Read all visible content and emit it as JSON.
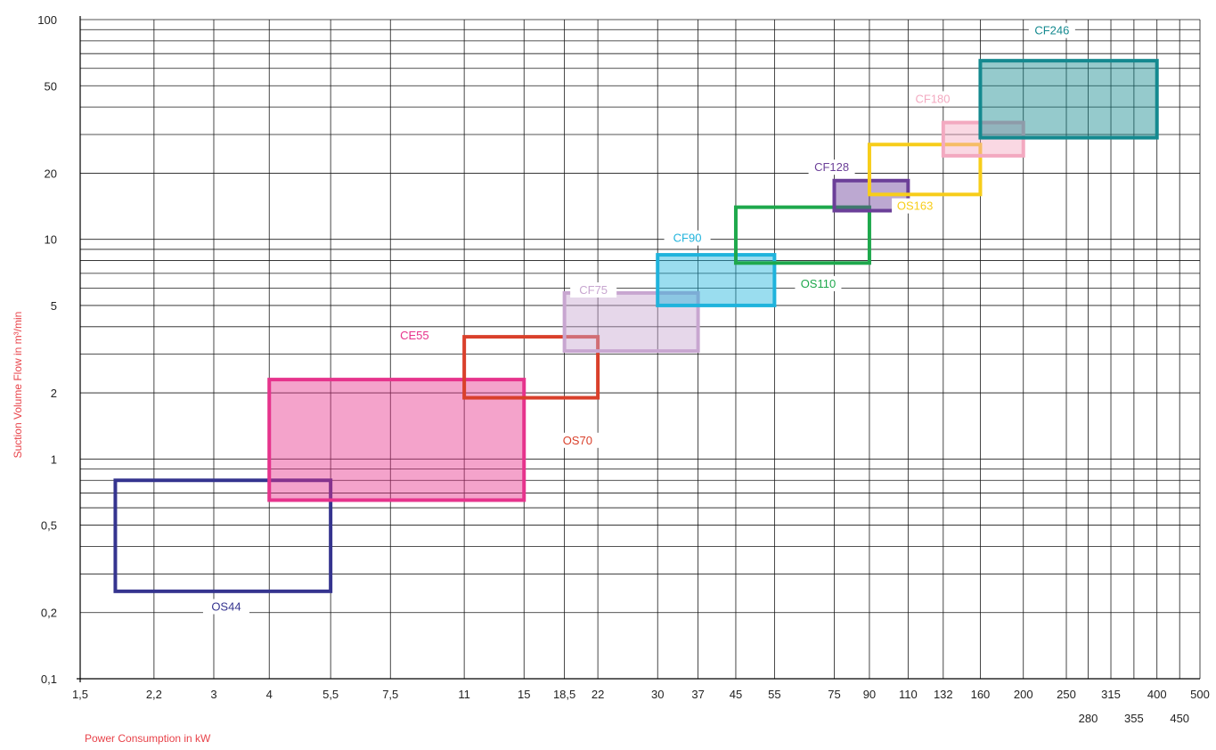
{
  "chart_data": {
    "type": "range-box",
    "xlabel": "Power Consumption in kW",
    "ylabel": "Suction Volume Flow in m³/min",
    "x_scale": "log",
    "y_scale": "log",
    "xlim": [
      1.5,
      500
    ],
    "ylim": [
      0.1,
      100
    ],
    "grid": true,
    "x_ticks_row1": [
      {
        "value": 1.5,
        "label": "1,5"
      },
      {
        "value": 2.2,
        "label": "2,2"
      },
      {
        "value": 3,
        "label": "3"
      },
      {
        "value": 4,
        "label": "4"
      },
      {
        "value": 5.5,
        "label": "5,5"
      },
      {
        "value": 7.5,
        "label": "7,5"
      },
      {
        "value": 11,
        "label": "11"
      },
      {
        "value": 15,
        "label": "15"
      },
      {
        "value": 18.5,
        "label": "18,5"
      },
      {
        "value": 22,
        "label": "22"
      },
      {
        "value": 30,
        "label": "30"
      },
      {
        "value": 37,
        "label": "37"
      },
      {
        "value": 45,
        "label": "45"
      },
      {
        "value": 55,
        "label": "55"
      },
      {
        "value": 75,
        "label": "75"
      },
      {
        "value": 90,
        "label": "90"
      },
      {
        "value": 110,
        "label": "110"
      },
      {
        "value": 132,
        "label": "132"
      },
      {
        "value": 160,
        "label": "160"
      },
      {
        "value": 200,
        "label": "200"
      },
      {
        "value": 250,
        "label": "250"
      },
      {
        "value": 315,
        "label": "315"
      },
      {
        "value": 400,
        "label": "400"
      },
      {
        "value": 500,
        "label": "500"
      }
    ],
    "x_ticks_row2": [
      {
        "value": 280,
        "label": "280"
      },
      {
        "value": 355,
        "label": "355"
      },
      {
        "value": 450,
        "label": "450"
      }
    ],
    "y_ticks": [
      {
        "value": 0.1,
        "label": "0,1"
      },
      {
        "value": 0.2,
        "label": "0,2"
      },
      {
        "value": 0.5,
        "label": "0,5"
      },
      {
        "value": 1,
        "label": "1"
      },
      {
        "value": 2,
        "label": "2"
      },
      {
        "value": 5,
        "label": "5"
      },
      {
        "value": 10,
        "label": "10"
      },
      {
        "value": 20,
        "label": "20"
      },
      {
        "value": 50,
        "label": "50"
      },
      {
        "value": 100,
        "label": "100"
      }
    ],
    "series": [
      {
        "name": "OS44",
        "x": [
          1.8,
          5.5
        ],
        "y": [
          0.25,
          0.8
        ],
        "color": "#35348f",
        "filled": false
      },
      {
        "name": "CE55",
        "x": [
          4,
          15
        ],
        "y": [
          0.65,
          2.3
        ],
        "color": "#e6338c",
        "filled": true
      },
      {
        "name": "OS70",
        "x": [
          11,
          22
        ],
        "y": [
          1.9,
          3.6
        ],
        "color": "#d9402b",
        "filled": false
      },
      {
        "name": "CF75",
        "x": [
          18.5,
          37
        ],
        "y": [
          3.1,
          5.7
        ],
        "color": "#c8a6d0",
        "filled": true
      },
      {
        "name": "CF90",
        "x": [
          30,
          55
        ],
        "y": [
          5.0,
          8.5
        ],
        "color": "#1fb3dc",
        "filled": true
      },
      {
        "name": "OS110",
        "x": [
          45,
          90
        ],
        "y": [
          7.8,
          14
        ],
        "color": "#1ea84c",
        "filled": false
      },
      {
        "name": "CF128",
        "x": [
          75,
          110
        ],
        "y": [
          13.5,
          18.5
        ],
        "color": "#6b3f98",
        "filled": true
      },
      {
        "name": "OS163",
        "x": [
          90,
          160
        ],
        "y": [
          16,
          27
        ],
        "color": "#f7cd1a",
        "filled": false
      },
      {
        "name": "CF180",
        "x": [
          132,
          200
        ],
        "y": [
          24,
          34
        ],
        "color": "#f3a9c0",
        "filled": true
      },
      {
        "name": "CF246",
        "x": [
          160,
          400
        ],
        "y": [
          29,
          65
        ],
        "color": "#14898f",
        "filled": true
      }
    ],
    "annotations": [
      {
        "label": "OS44",
        "x": 3.2,
        "y": 0.21,
        "pos": "below"
      },
      {
        "label": "CE55",
        "x": 8.5,
        "y": 3.6,
        "pos": "above"
      },
      {
        "label": "OS70",
        "x": 19.8,
        "y": 1.2,
        "pos": "below"
      },
      {
        "label": "CF75",
        "x": 21.5,
        "y": 5.8,
        "pos": "above"
      },
      {
        "label": "CF90",
        "x": 35,
        "y": 10,
        "pos": "above"
      },
      {
        "label": "OS110",
        "x": 69,
        "y": 6.2,
        "pos": "below"
      },
      {
        "label": "CF128",
        "x": 74,
        "y": 21,
        "pos": "above"
      },
      {
        "label": "OS163",
        "x": 114,
        "y": 14,
        "pos": "below"
      },
      {
        "label": "CF180",
        "x": 125,
        "y": 43,
        "pos": "above"
      },
      {
        "label": "CF246",
        "x": 232,
        "y": 88,
        "pos": "above"
      }
    ]
  }
}
